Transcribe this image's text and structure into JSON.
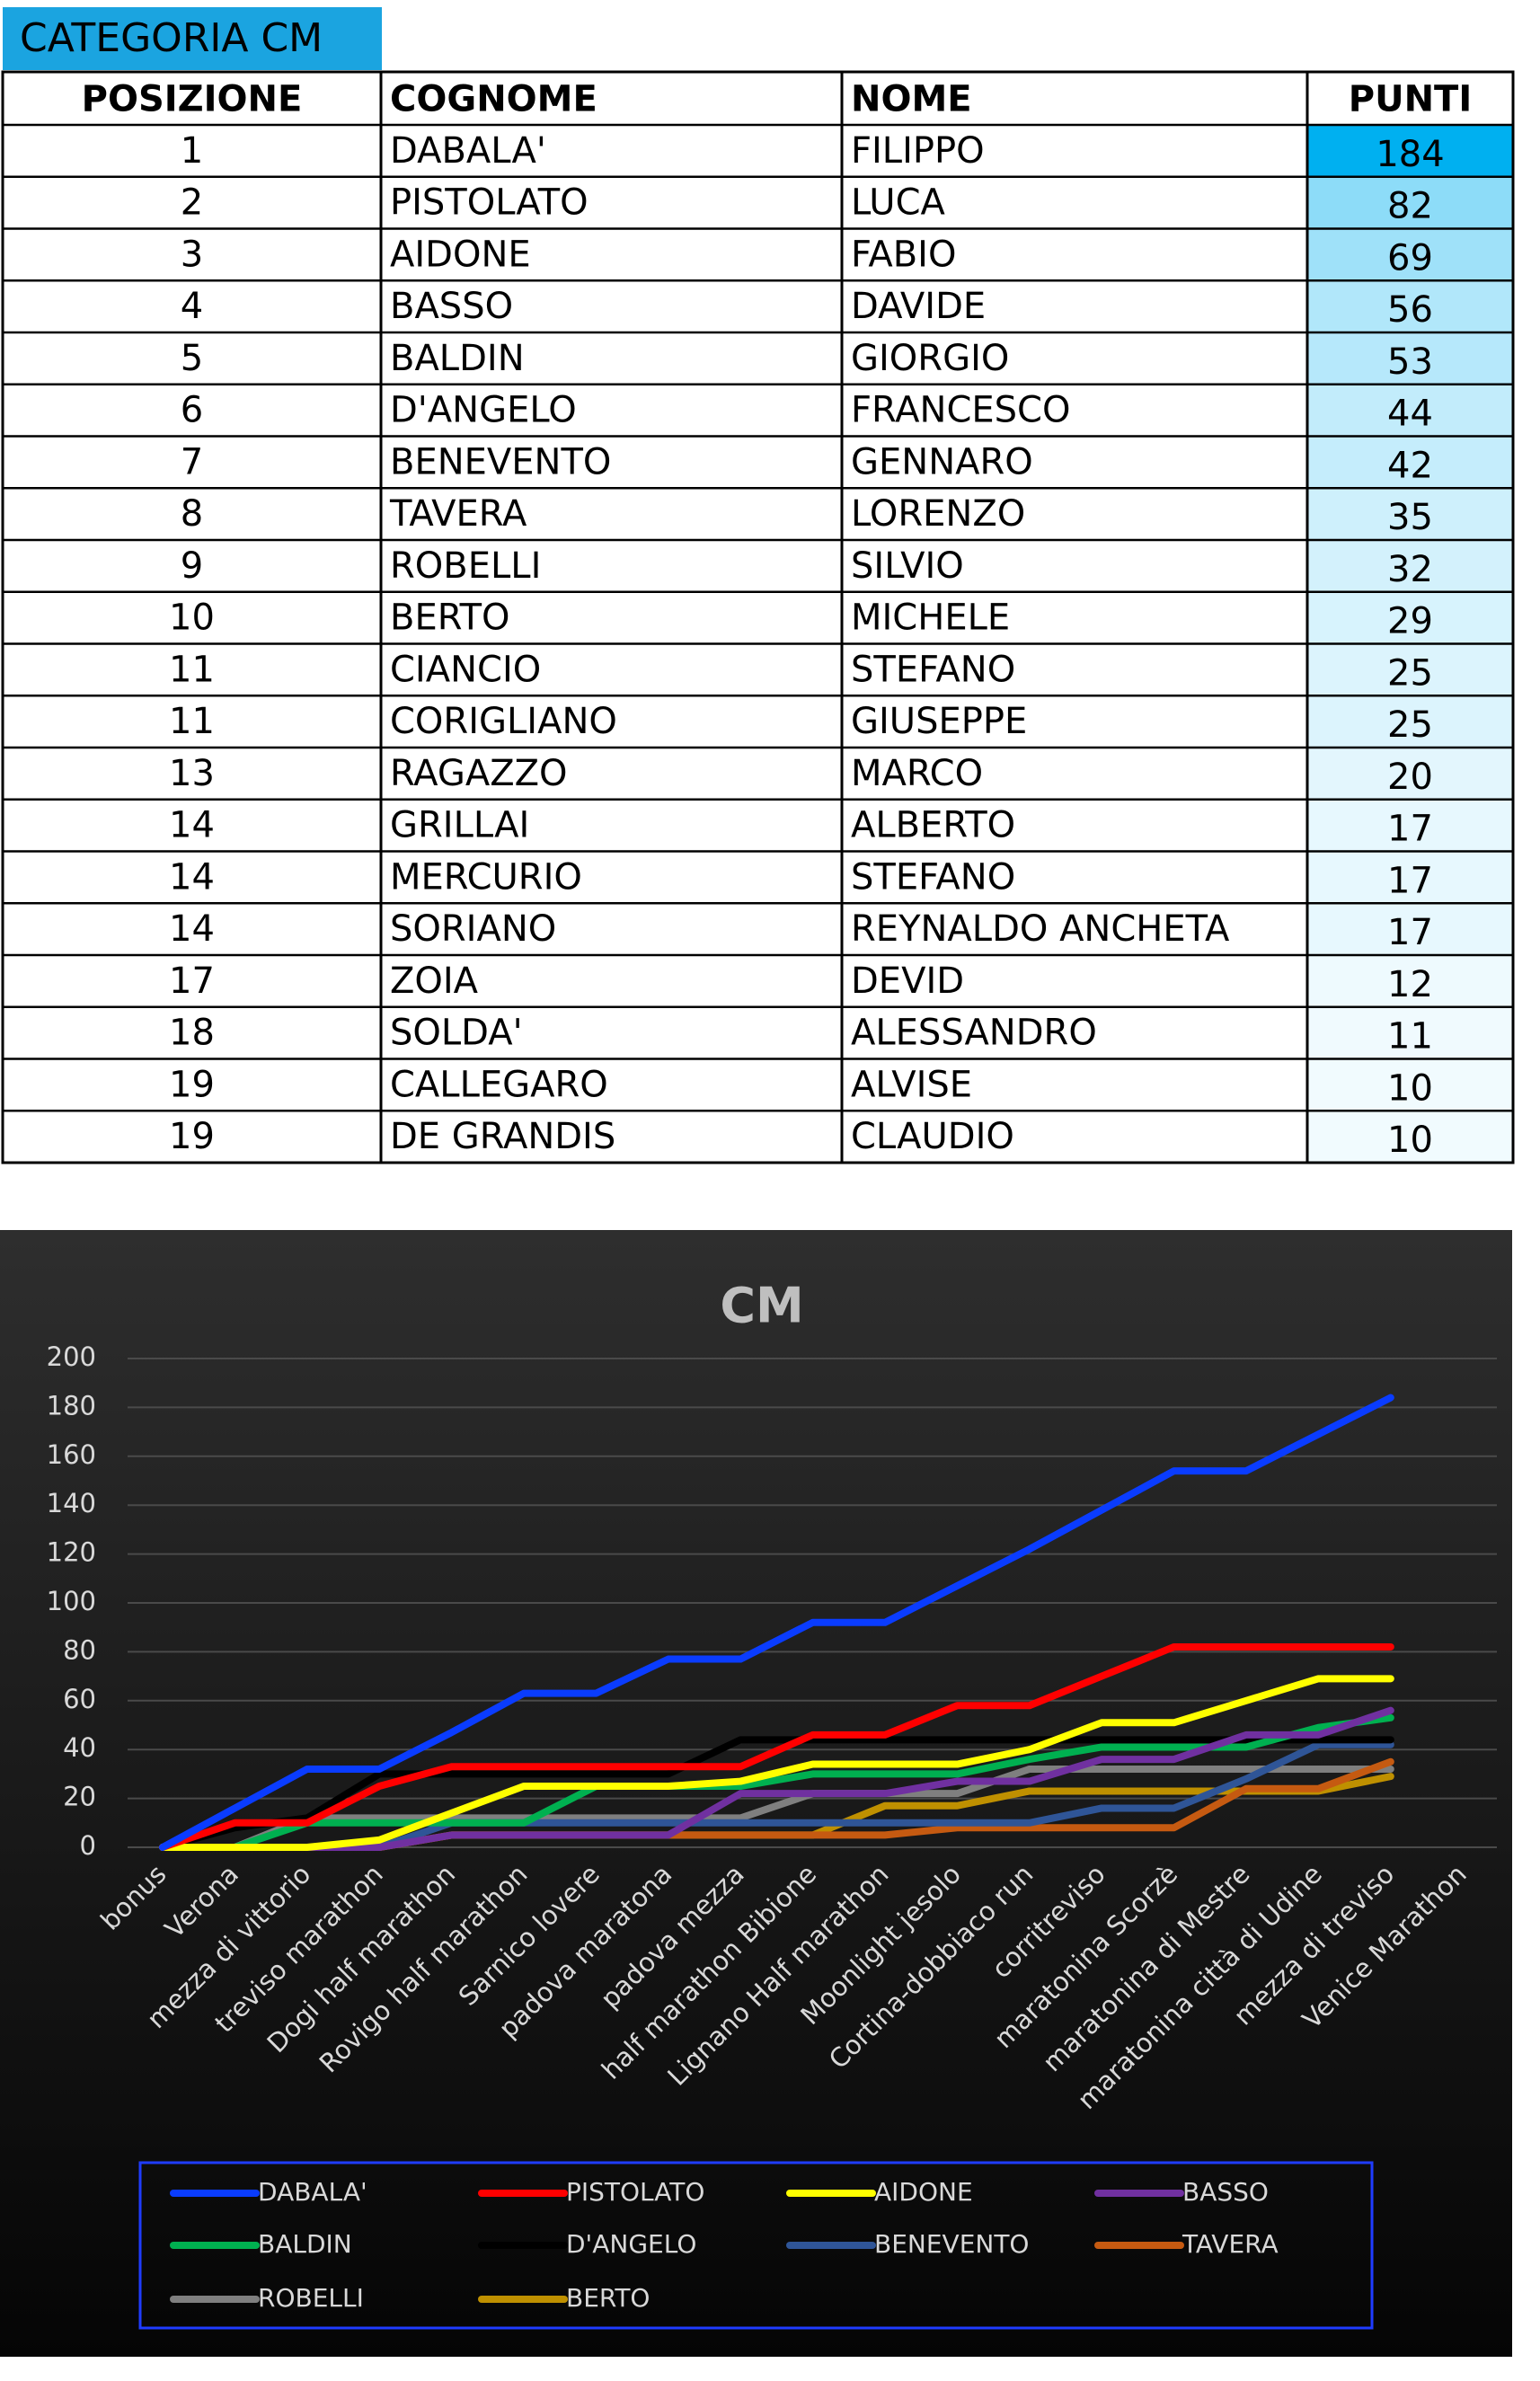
{
  "header": {
    "title": "CATEGORIA CM"
  },
  "table": {
    "columns": [
      "POSIZIONE",
      "COGNOME",
      "NOME",
      "PUNTI"
    ],
    "rows": [
      [
        1,
        "DABALA'",
        "FILIPPO",
        184
      ],
      [
        2,
        "PISTOLATO",
        "LUCA",
        82
      ],
      [
        3,
        "AIDONE",
        "FABIO",
        69
      ],
      [
        4,
        "BASSO",
        "DAVIDE",
        56
      ],
      [
        5,
        "BALDIN",
        "GIORGIO",
        53
      ],
      [
        6,
        "D'ANGELO",
        "FRANCESCO",
        44
      ],
      [
        7,
        "BENEVENTO",
        "GENNARO",
        42
      ],
      [
        8,
        "TAVERA",
        "LORENZO",
        35
      ],
      [
        9,
        "ROBELLI",
        "SILVIO",
        32
      ],
      [
        10,
        "BERTO",
        "MICHELE",
        29
      ],
      [
        11,
        "CIANCIO",
        "STEFANO",
        25
      ],
      [
        11,
        "CORIGLIANO",
        "GIUSEPPE",
        25
      ],
      [
        13,
        "RAGAZZO",
        "MARCO",
        20
      ],
      [
        14,
        "GRILLAI",
        "ALBERTO",
        17
      ],
      [
        14,
        "MERCURIO",
        "STEFANO",
        17
      ],
      [
        14,
        "SORIANO",
        "REYNALDO ANCHETA",
        17
      ],
      [
        17,
        "ZOIA",
        "DEVID",
        12
      ],
      [
        18,
        "SOLDA'",
        "ALESSANDRO",
        11
      ],
      [
        19,
        "CALLEGARO",
        "ALVISE",
        10
      ],
      [
        19,
        "DE GRANDIS",
        "CLAUDIO",
        10
      ]
    ]
  },
  "chart_data": {
    "type": "line",
    "title": "CM",
    "categories": [
      "bonus",
      "Verona",
      "mezza di vittorio",
      "treviso marathon",
      "Dogi half marathon",
      "Rovigo half marathon",
      "Sarnico lovere",
      "padova maratona",
      "padova mezza",
      "half marathon Bibione",
      "Lignano Half marathon",
      "Moonlight jesolo",
      "Cortina-dobbiaco run",
      "corritreviso",
      "maratonina Scorzè",
      "maratonina di Mestre",
      "maratonina città di Udine",
      "mezza di treviso",
      "Venice Marathon"
    ],
    "ylim": [
      0,
      200
    ],
    "yticks": [
      0,
      20,
      40,
      60,
      80,
      100,
      120,
      140,
      160,
      180,
      200
    ],
    "grid": true,
    "legend": "bottom",
    "series": [
      {
        "name": "DABALA'",
        "color": "#0a3cff",
        "values": [
          0,
          16,
          32,
          32,
          47,
          63,
          63,
          77,
          77,
          92,
          92,
          107,
          122,
          138,
          154,
          154,
          169,
          184,
          null
        ]
      },
      {
        "name": "PISTOLATO",
        "color": "#ff0000",
        "values": [
          0,
          10,
          10,
          25,
          33,
          33,
          33,
          33,
          33,
          46,
          46,
          58,
          58,
          70,
          82,
          82,
          82,
          82,
          null
        ]
      },
      {
        "name": "AIDONE",
        "color": "#ffff00",
        "values": [
          0,
          0,
          0,
          3,
          14,
          25,
          25,
          25,
          27,
          34,
          34,
          34,
          40,
          51,
          51,
          60,
          69,
          69,
          null
        ]
      },
      {
        "name": "BASSO",
        "color": "#7030a0",
        "values": [
          0,
          0,
          0,
          0,
          5,
          5,
          5,
          5,
          22,
          22,
          22,
          27,
          27,
          36,
          36,
          46,
          46,
          56,
          null
        ]
      },
      {
        "name": "BALDIN",
        "color": "#00b050",
        "values": [
          0,
          0,
          10,
          10,
          10,
          10,
          25,
          25,
          25,
          30,
          30,
          30,
          36,
          41,
          41,
          41,
          49,
          53,
          null
        ]
      },
      {
        "name": "D'ANGELO",
        "color": "#000000",
        "values": [
          0,
          8,
          12,
          30,
          30,
          30,
          30,
          30,
          44,
          44,
          44,
          44,
          44,
          44,
          44,
          44,
          44,
          44,
          null
        ]
      },
      {
        "name": "BENEVENTO",
        "color": "#2f5597",
        "values": [
          0,
          0,
          0,
          0,
          10,
          10,
          10,
          10,
          10,
          10,
          10,
          10,
          10,
          16,
          16,
          28,
          42,
          42,
          null
        ]
      },
      {
        "name": "TAVERA",
        "color": "#c55a11",
        "values": [
          0,
          0,
          0,
          0,
          5,
          5,
          5,
          5,
          5,
          5,
          5,
          8,
          8,
          8,
          8,
          24,
          24,
          35,
          null
        ]
      },
      {
        "name": "ROBELLI",
        "color": "#7f7f7f",
        "values": [
          0,
          0,
          12,
          12,
          12,
          12,
          12,
          12,
          12,
          22,
          22,
          22,
          32,
          32,
          32,
          32,
          32,
          32,
          null
        ]
      },
      {
        "name": "BERTO",
        "color": "#bf9000",
        "values": [
          0,
          0,
          0,
          0,
          5,
          5,
          5,
          5,
          5,
          5,
          17,
          17,
          23,
          23,
          23,
          23,
          23,
          29,
          null
        ]
      }
    ]
  }
}
